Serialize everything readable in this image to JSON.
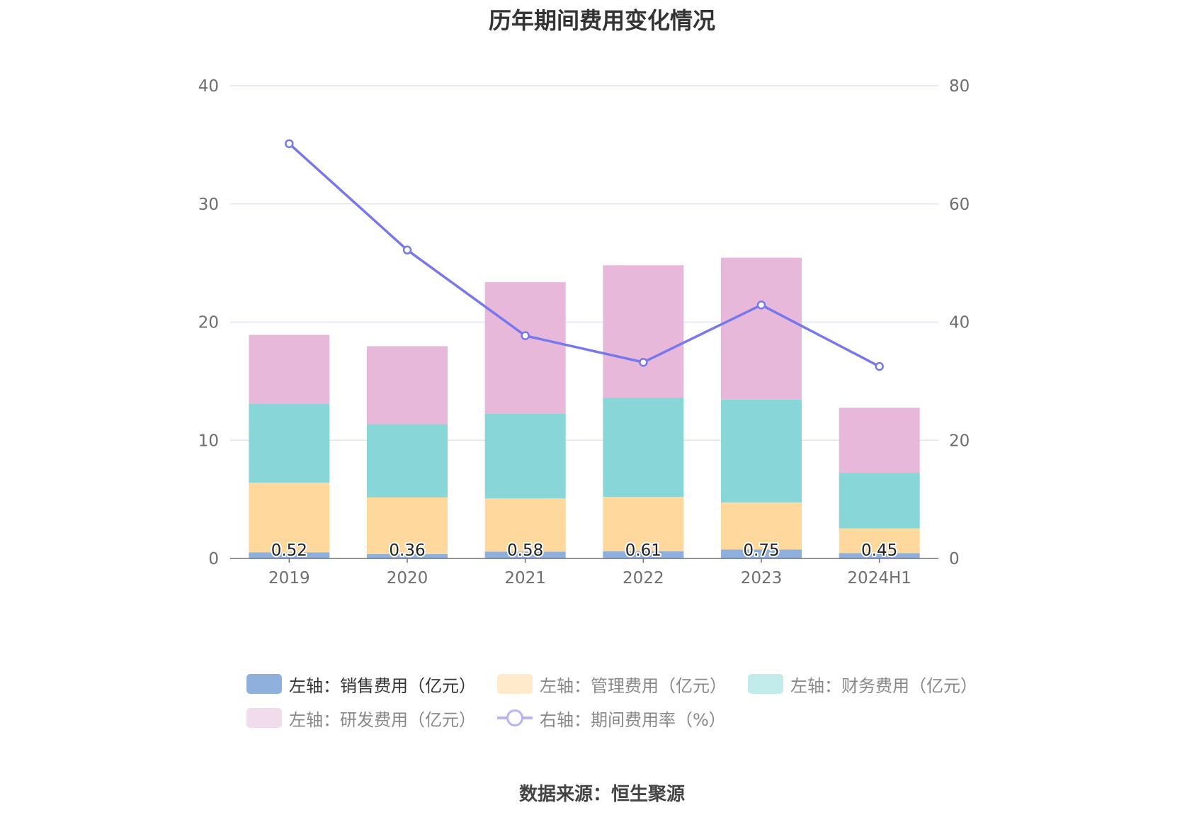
{
  "chart_data": {
    "type": "bar",
    "title": "历年期间费用变化情况",
    "categories": [
      "2019",
      "2020",
      "2021",
      "2022",
      "2023",
      "2024H1"
    ],
    "left_axis": {
      "min": 0,
      "max": 40,
      "ticks": [
        0,
        10,
        20,
        30,
        40
      ]
    },
    "right_axis": {
      "min": 0,
      "max": 80,
      "ticks": [
        0,
        20,
        40,
        60,
        80
      ]
    },
    "grid": true,
    "series": [
      {
        "name": "左轴：销售费用（亿元）",
        "type": "bar",
        "stack": "total",
        "axis": "left",
        "color": "#8fb0dc",
        "values": [
          0.52,
          0.36,
          0.58,
          0.61,
          0.75,
          0.45
        ],
        "show_labels": true
      },
      {
        "name": "左轴：管理费用（亿元）",
        "type": "bar",
        "stack": "total",
        "axis": "left",
        "color": "#ffd89e",
        "values": [
          5.9,
          4.8,
          4.5,
          4.6,
          4.0,
          2.1
        ]
      },
      {
        "name": "左轴：财务费用（亿元）",
        "type": "bar",
        "stack": "total",
        "axis": "left",
        "color": "#88d6d8",
        "values": [
          6.7,
          6.2,
          7.2,
          8.4,
          8.7,
          4.7
        ]
      },
      {
        "name": "左轴：研发费用（亿元）",
        "type": "bar",
        "stack": "total",
        "axis": "left",
        "color": "#e8b8da",
        "values": [
          5.8,
          6.6,
          11.1,
          11.2,
          12.0,
          5.5
        ]
      },
      {
        "name": "右轴：期间费用率（%）",
        "type": "line",
        "axis": "right",
        "color": "#7777ee",
        "values": [
          70.2,
          52.2,
          37.7,
          33.2,
          42.9,
          32.5
        ]
      }
    ],
    "legend": {
      "placement": "bottom",
      "rows": [
        [
          {
            "label": "左轴：销售费用（亿元）",
            "color": "#8fb0dc",
            "kind": "box",
            "active": true
          },
          {
            "label": "左轴：管理费用（亿元）",
            "color": "#ffebcc",
            "kind": "box",
            "active": false
          },
          {
            "label": "左轴：财务费用（亿元）",
            "color": "#c2ecec",
            "kind": "box",
            "active": false
          }
        ],
        [
          {
            "label": "左轴：研发费用（亿元）",
            "color": "#f1dcec",
            "kind": "box",
            "active": false
          },
          {
            "label": "右轴：期间费用率（%）",
            "color": "#b7b3f6",
            "kind": "line",
            "active": false
          }
        ]
      ]
    }
  },
  "source": "数据来源：恒生聚源"
}
